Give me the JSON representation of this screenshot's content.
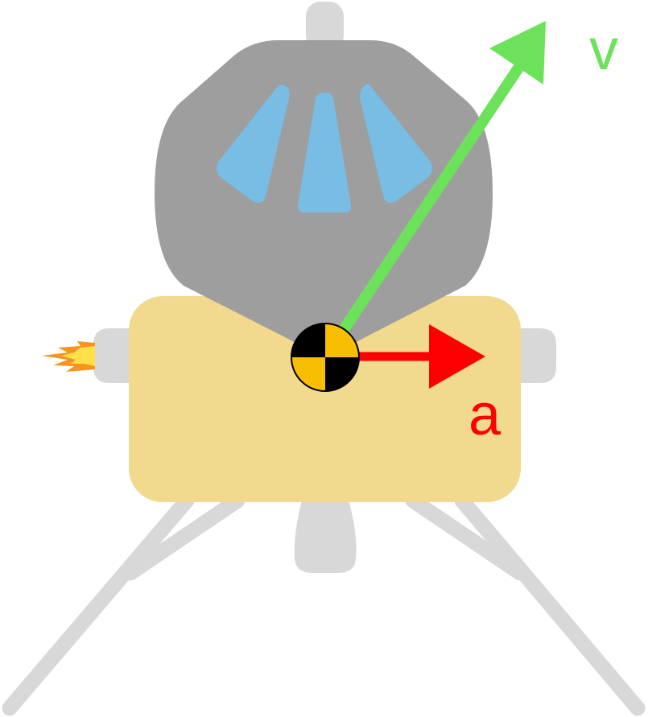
{
  "labels": {
    "velocity": "v",
    "acceleration": "a"
  },
  "colors": {
    "velocity": "#6ce25a",
    "acceleration": "#ff0000",
    "body": "#f1d98e",
    "cabin": "#9e9e9e",
    "window": "#78bde4",
    "legs_and_thrusters": "#d8d8d8",
    "center_of_mass_light": "#f7bd00",
    "center_of_mass_dark": "#000000",
    "flame_outer": "#f7931e",
    "flame_inner": "#ffe04a"
  },
  "icons": {
    "center_of_mass": "center-of-mass-marker",
    "thruster_flame": "flame-icon"
  }
}
